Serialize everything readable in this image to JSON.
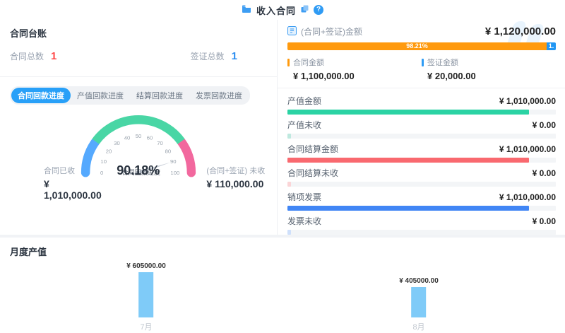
{
  "theme": {
    "accent": "#28a0f8",
    "band": "#f1f3f6",
    "divider": "#eef0f3",
    "red": "#ff4a4a",
    "blue": "#2b8df0"
  },
  "header": {
    "title": "收入合同",
    "help_glyph": "?"
  },
  "ledger": {
    "title": "合同台账",
    "stats": [
      {
        "label": "合同总数",
        "value": "1",
        "color": "#ff4a4a"
      },
      {
        "label": "签证总数",
        "value": "1",
        "color": "#2b8df0"
      }
    ],
    "tabs": [
      {
        "label": "合同回款进度",
        "active": true
      },
      {
        "label": "产值回款进度",
        "active": false
      },
      {
        "label": "结算回款进度",
        "active": false
      },
      {
        "label": "发票回款进度",
        "active": false
      }
    ],
    "gauge_value_display": "90.18%",
    "received": {
      "label": "合同已收",
      "value": "¥ 1,010,000.00"
    },
    "unreceived": {
      "label": "(合同+签证) 未收",
      "value": "¥ 110,000.00"
    }
  },
  "summary": {
    "title": "(合同+签证)金额",
    "total": "¥ 1,120,000.00",
    "split_bar": {
      "segments": [
        {
          "label": "98.21%",
          "pct": 98.21,
          "color": "#ff9a0e"
        },
        {
          "label": "1.",
          "pct": 1.79,
          "color": "#2196f3"
        }
      ]
    },
    "legend": [
      {
        "label": "合同金额",
        "value": "¥ 1,100,000.00",
        "color": "#ff9a0e"
      },
      {
        "label": "签证金额",
        "value": "¥ 20,000.00",
        "color": "#2e9cf5"
      }
    ],
    "metrics": [
      {
        "label": "产值金额",
        "value": "¥ 1,010,000.00",
        "fill_pct": 90,
        "color": "#2bd3a4"
      },
      {
        "label": "产值未收",
        "value": "¥ 0.00",
        "fill_pct": 1.2,
        "color": "#bfe9df"
      },
      {
        "label": "合同结算金额",
        "value": "¥ 1,010,000.00",
        "fill_pct": 90,
        "color": "#f9696f"
      },
      {
        "label": "合同结算未收",
        "value": "¥ 0.00",
        "fill_pct": 1.2,
        "color": "#fbd5d7"
      },
      {
        "label": "销项发票",
        "value": "¥ 1,010,000.00",
        "fill_pct": 90,
        "color": "#4186f5"
      },
      {
        "label": "发票未收",
        "value": "¥ 0.00",
        "fill_pct": 1.2,
        "color": "#cfe0fb"
      }
    ]
  },
  "monthly": {
    "title": "月度产值"
  },
  "chart_data": [
    {
      "type": "gauge",
      "title": "合同回款进度",
      "value": 90.18,
      "value_display": "90.18%",
      "min": 0,
      "max": 100,
      "ticks": [
        0,
        10,
        20,
        30,
        40,
        50,
        60,
        70,
        80,
        90,
        100
      ],
      "segments": [
        {
          "from": 0,
          "to": 20,
          "color": "#55a9fe"
        },
        {
          "from": 20,
          "to": 80,
          "color": "#49d6a5"
        },
        {
          "from": 80,
          "to": 100,
          "color": "#f2689e"
        }
      ],
      "needle_color": "#ccd2da",
      "tick_color": "#9aa3ad",
      "label_color": "#5a6472"
    },
    {
      "type": "bar",
      "title": "月度产值",
      "categories": [
        "7月",
        "8月"
      ],
      "values": [
        605000,
        405000
      ],
      "labels": [
        "¥ 605000.00",
        "¥ 405000.00"
      ],
      "bar_color": "#7fcbf8",
      "ylim": [
        0,
        650000
      ],
      "grid": false,
      "legend": "none"
    }
  ]
}
